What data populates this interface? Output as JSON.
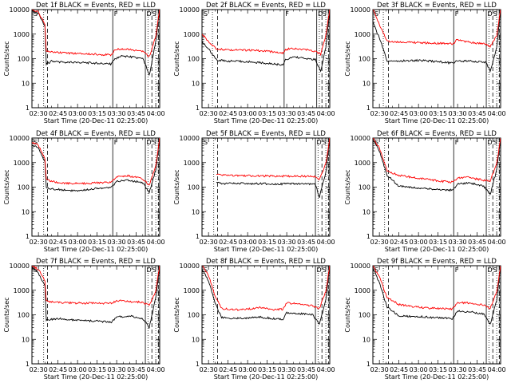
{
  "colors": {
    "events": "#000000",
    "lld": "#ff0000",
    "axis": "#000000",
    "background": "#ffffff"
  },
  "common": {
    "ylabel": "Counts/sec",
    "xlabel": "Start Time (20-Dec-11 02:25:00)",
    "xticks": [
      "02:30",
      "02:45",
      "03:00",
      "03:15",
      "03:30",
      "03:45",
      "04:00"
    ],
    "yticks": [
      "1",
      "10",
      "100",
      "1000",
      "10000"
    ],
    "markers": {
      "left": "S",
      "mid": "F",
      "right1": "D",
      "right2": "S"
    }
  },
  "chart_data": [
    {
      "type": "line",
      "detector": "1f",
      "title": "Det 1f BLACK = Events, RED = LLD",
      "xlim": [
        "02:25",
        "04:03"
      ],
      "ylim": [
        1,
        10000
      ],
      "yscale": "log",
      "vlines": {
        "dotted": [
          "02:34",
          "03:54",
          "04:00"
        ],
        "dashed": [
          "02:37",
          "03:57",
          "04:02"
        ],
        "solid": [
          "03:27",
          "03:52"
        ]
      },
      "series": [
        {
          "name": "Events",
          "color": "#000000",
          "x": [
            "02:25",
            "02:30",
            "02:35",
            "02:36",
            "02:40",
            "02:50",
            "03:00",
            "03:15",
            "03:26",
            "03:28",
            "03:33",
            "03:40",
            "03:50",
            "03:52",
            "03:55",
            "04:00",
            "04:03"
          ],
          "values": [
            9000,
            7000,
            2000,
            60,
            80,
            70,
            70,
            65,
            60,
            90,
            130,
            120,
            100,
            60,
            20,
            500,
            10000
          ]
        },
        {
          "name": "LLD",
          "color": "#ff0000",
          "x": [
            "02:25",
            "02:30",
            "02:35",
            "02:36",
            "02:40",
            "02:50",
            "03:00",
            "03:15",
            "03:26",
            "03:28",
            "03:33",
            "03:40",
            "03:50",
            "03:52",
            "03:55",
            "04:00",
            "04:03"
          ],
          "values": [
            10000,
            8000,
            2500,
            220,
            190,
            170,
            160,
            150,
            140,
            220,
            250,
            230,
            200,
            160,
            120,
            800,
            10000
          ]
        }
      ]
    },
    {
      "type": "line",
      "detector": "2f",
      "title": "Det 2f BLACK = Events, RED = LLD",
      "xlim": [
        "02:25",
        "04:03"
      ],
      "ylim": [
        1,
        10000
      ],
      "yscale": "log",
      "vlines": {
        "dotted": [
          "02:33",
          "03:55",
          "04:00"
        ],
        "dashed": [
          "02:37",
          "03:57",
          "04:02"
        ],
        "solid": [
          "03:28",
          "03:53"
        ]
      },
      "series": [
        {
          "name": "Events",
          "color": "#000000",
          "x": [
            "02:25",
            "02:30",
            "02:33",
            "02:36",
            "02:45",
            "03:00",
            "03:15",
            "03:27",
            "03:29",
            "03:35",
            "03:45",
            "03:52",
            "03:56",
            "04:00",
            "04:03"
          ],
          "values": [
            500,
            250,
            150,
            90,
            80,
            75,
            65,
            55,
            90,
            120,
            100,
            90,
            30,
            300,
            10000
          ]
        },
        {
          "name": "LLD",
          "color": "#ff0000",
          "x": [
            "02:25",
            "02:30",
            "02:33",
            "02:36",
            "02:45",
            "03:00",
            "03:15",
            "03:27",
            "03:29",
            "03:35",
            "03:45",
            "03:52",
            "03:56",
            "04:00",
            "04:03"
          ],
          "values": [
            1000,
            500,
            350,
            250,
            230,
            220,
            200,
            170,
            240,
            260,
            230,
            200,
            150,
            900,
            10000
          ]
        }
      ]
    },
    {
      "type": "line",
      "detector": "3f",
      "title": "Det 3f BLACK = Events, RED = LLD",
      "xlim": [
        "02:25",
        "04:03"
      ],
      "ylim": [
        1,
        10000
      ],
      "yscale": "log",
      "vlines": {
        "dotted": [
          "02:33",
          "03:54",
          "04:00"
        ],
        "dashed": [
          "02:37",
          "03:57",
          "04:02"
        ],
        "solid": [
          "03:27",
          "03:52"
        ]
      },
      "series": [
        {
          "name": "Events",
          "color": "#000000",
          "x": [
            "02:25",
            "02:30",
            "02:36",
            "02:45",
            "03:00",
            "03:15",
            "03:27",
            "03:29",
            "03:40",
            "03:52",
            "03:55",
            "04:00",
            "04:03"
          ],
          "values": [
            3000,
            700,
            80,
            80,
            85,
            75,
            65,
            80,
            80,
            70,
            30,
            300,
            10000
          ]
        },
        {
          "name": "LLD",
          "color": "#ff0000",
          "x": [
            "02:25",
            "02:30",
            "02:36",
            "02:45",
            "03:00",
            "03:15",
            "03:27",
            "03:29",
            "03:40",
            "03:52",
            "03:55",
            "04:00",
            "04:03"
          ],
          "values": [
            10000,
            2500,
            500,
            480,
            450,
            420,
            400,
            600,
            450,
            400,
            300,
            900,
            10000
          ]
        }
      ]
    },
    {
      "type": "line",
      "detector": "4f",
      "title": "Det 4f BLACK = Events, RED = LLD",
      "xlim": [
        "02:25",
        "04:03"
      ],
      "ylim": [
        1,
        10000
      ],
      "yscale": "log",
      "vlines": {
        "dotted": [
          "02:34",
          "03:54",
          "04:00"
        ],
        "dashed": [
          "02:37",
          "03:57",
          "04:02"
        ],
        "solid": [
          "03:27",
          "03:52"
        ]
      },
      "series": [
        {
          "name": "Events",
          "color": "#000000",
          "x": [
            "02:25",
            "02:30",
            "02:35",
            "02:36",
            "02:45",
            "03:00",
            "03:15",
            "03:26",
            "03:30",
            "03:38",
            "03:50",
            "03:55",
            "04:00",
            "04:03"
          ],
          "values": [
            5000,
            4000,
            1000,
            90,
            80,
            70,
            90,
            100,
            170,
            200,
            150,
            60,
            500,
            10000
          ]
        },
        {
          "name": "LLD",
          "color": "#ff0000",
          "x": [
            "02:25",
            "02:30",
            "02:35",
            "02:36",
            "02:45",
            "03:00",
            "03:15",
            "03:26",
            "03:30",
            "03:38",
            "03:50",
            "03:55",
            "04:00",
            "04:03"
          ],
          "values": [
            7000,
            5000,
            1500,
            200,
            150,
            140,
            150,
            160,
            260,
            290,
            220,
            120,
            800,
            10000
          ]
        }
      ]
    },
    {
      "type": "line",
      "detector": "5f",
      "title": "Det 5f BLACK = Events, RED = LLD",
      "xlim": [
        "02:25",
        "04:03"
      ],
      "ylim": [
        1,
        10000
      ],
      "yscale": "log",
      "vlines": {
        "dotted": [
          "02:34",
          "03:54",
          "04:00"
        ],
        "dashed": [
          "02:37",
          "03:57",
          "04:02"
        ],
        "solid": [
          "03:52"
        ]
      },
      "series": [
        {
          "name": "Events",
          "color": "#000000",
          "x": [
            "02:36",
            "02:40",
            "03:00",
            "03:20",
            "03:40",
            "03:52",
            "03:55",
            "04:00",
            "04:03"
          ],
          "values": [
            150,
            140,
            140,
            135,
            135,
            130,
            40,
            400,
            10000
          ]
        },
        {
          "name": "LLD",
          "color": "#ff0000",
          "x": [
            "02:36",
            "02:40",
            "03:00",
            "03:20",
            "03:40",
            "03:52",
            "03:55",
            "04:00",
            "04:03"
          ],
          "values": [
            350,
            300,
            290,
            280,
            280,
            270,
            200,
            900,
            10000
          ]
        }
      ]
    },
    {
      "type": "line",
      "detector": "6f",
      "title": "Det 6f BLACK = Events, RED = LLD",
      "xlim": [
        "02:25",
        "04:03"
      ],
      "ylim": [
        1,
        10000
      ],
      "yscale": "log",
      "vlines": {
        "dotted": [
          "02:34",
          "03:54",
          "04:00"
        ],
        "dashed": [
          "02:37",
          "03:57",
          "04:02"
        ],
        "solid": [
          "03:27",
          "03:52"
        ]
      },
      "series": [
        {
          "name": "Events",
          "color": "#000000",
          "x": [
            "02:25",
            "02:30",
            "02:36",
            "02:45",
            "03:00",
            "03:15",
            "03:26",
            "03:30",
            "03:38",
            "03:50",
            "03:55",
            "04:00",
            "04:03"
          ],
          "values": [
            9000,
            3000,
            300,
            110,
            90,
            80,
            75,
            130,
            150,
            110,
            50,
            500,
            10000
          ]
        },
        {
          "name": "LLD",
          "color": "#ff0000",
          "x": [
            "02:25",
            "02:30",
            "02:36",
            "02:45",
            "03:00",
            "03:15",
            "03:26",
            "03:30",
            "03:38",
            "03:50",
            "03:55",
            "04:00",
            "04:03"
          ],
          "values": [
            10000,
            4000,
            450,
            300,
            230,
            180,
            160,
            230,
            250,
            190,
            180,
            900,
            10000
          ]
        }
      ]
    },
    {
      "type": "line",
      "detector": "7f",
      "title": "Det 7f BLACK = Events, RED = LLD",
      "xlim": [
        "02:25",
        "04:03"
      ],
      "ylim": [
        1,
        10000
      ],
      "yscale": "log",
      "vlines": {
        "dotted": [
          "02:34",
          "03:54",
          "04:00"
        ],
        "dashed": [
          "02:37",
          "03:57",
          "04:02"
        ],
        "solid": [
          "03:52"
        ]
      },
      "series": [
        {
          "name": "Events",
          "color": "#000000",
          "x": [
            "02:25",
            "02:30",
            "02:35",
            "02:36",
            "02:45",
            "03:00",
            "03:15",
            "03:26",
            "03:30",
            "03:40",
            "03:50",
            "03:55",
            "04:00",
            "04:03"
          ],
          "values": [
            9000,
            5000,
            1500,
            60,
            70,
            60,
            55,
            50,
            80,
            90,
            70,
            30,
            500,
            10000
          ]
        },
        {
          "name": "LLD",
          "color": "#ff0000",
          "x": [
            "02:25",
            "02:30",
            "02:35",
            "02:36",
            "02:45",
            "03:00",
            "03:15",
            "03:26",
            "03:30",
            "03:40",
            "03:50",
            "03:55",
            "04:00",
            "04:03"
          ],
          "values": [
            10000,
            7000,
            2500,
            350,
            320,
            300,
            300,
            290,
            380,
            350,
            320,
            250,
            900,
            10000
          ]
        }
      ]
    },
    {
      "type": "line",
      "detector": "8f",
      "title": "Det 8f BLACK = Events, RED = LLD",
      "xlim": [
        "02:25",
        "04:03"
      ],
      "ylim": [
        1,
        10000
      ],
      "yscale": "log",
      "vlines": {
        "dotted": [
          "02:34",
          "03:54",
          "04:00"
        ],
        "dashed": [
          "02:37",
          "03:57",
          "04:02"
        ],
        "solid": [
          "03:52"
        ]
      },
      "series": [
        {
          "name": "Events",
          "color": "#000000",
          "x": [
            "02:25",
            "02:30",
            "02:35",
            "02:40",
            "02:50",
            "03:00",
            "03:10",
            "03:20",
            "03:27",
            "03:30",
            "03:40",
            "03:50",
            "03:55",
            "04:00",
            "04:03"
          ],
          "values": [
            7000,
            2500,
            300,
            80,
            70,
            75,
            80,
            70,
            65,
            120,
            110,
            100,
            40,
            400,
            10000
          ]
        },
        {
          "name": "LLD",
          "color": "#ff0000",
          "x": [
            "02:25",
            "02:30",
            "02:35",
            "02:40",
            "02:50",
            "03:00",
            "03:10",
            "03:20",
            "03:27",
            "03:30",
            "03:40",
            "03:50",
            "03:55",
            "04:00",
            "04:03"
          ],
          "values": [
            10000,
            4000,
            600,
            180,
            160,
            170,
            200,
            160,
            170,
            300,
            280,
            230,
            180,
            900,
            10000
          ]
        }
      ]
    },
    {
      "type": "line",
      "detector": "9f",
      "title": "Det 9f BLACK = Events, RED = LLD",
      "xlim": [
        "02:25",
        "04:03"
      ],
      "ylim": [
        1,
        10000
      ],
      "yscale": "log",
      "vlines": {
        "dotted": [
          "02:33",
          "03:54",
          "04:00"
        ],
        "dashed": [
          "02:37",
          "03:57",
          "04:02"
        ],
        "solid": [
          "03:27",
          "03:52"
        ]
      },
      "series": [
        {
          "name": "Events",
          "color": "#000000",
          "x": [
            "02:25",
            "02:30",
            "02:36",
            "02:45",
            "03:00",
            "03:15",
            "03:26",
            "03:30",
            "03:40",
            "03:50",
            "03:55",
            "04:00",
            "04:03"
          ],
          "values": [
            8000,
            2000,
            200,
            90,
            85,
            75,
            70,
            140,
            130,
            110,
            40,
            400,
            10000
          ]
        },
        {
          "name": "LLD",
          "color": "#ff0000",
          "x": [
            "02:25",
            "02:30",
            "02:36",
            "02:45",
            "03:00",
            "03:15",
            "03:26",
            "03:30",
            "03:40",
            "03:50",
            "03:55",
            "04:00",
            "04:03"
          ],
          "values": [
            10000,
            3500,
            500,
            260,
            200,
            180,
            170,
            320,
            300,
            250,
            180,
            900,
            10000
          ]
        }
      ]
    }
  ]
}
